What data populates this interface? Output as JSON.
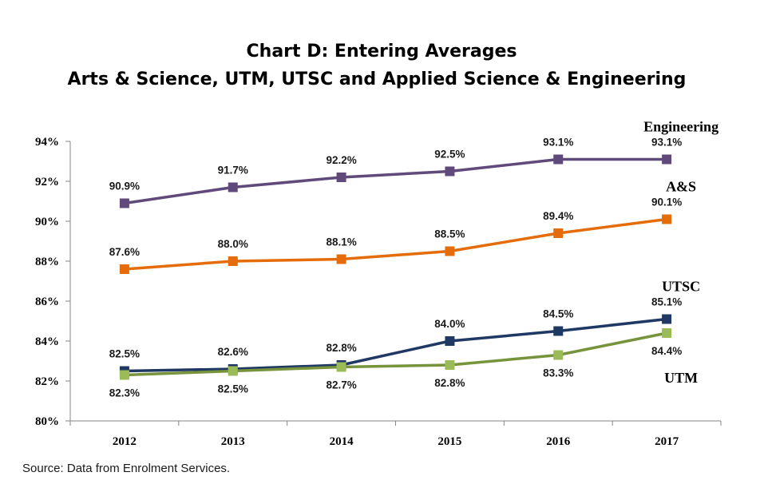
{
  "chart_data": {
    "type": "line",
    "title": "Chart D: Entering Averages",
    "subtitle": "Arts & Science, UTM, UTSC and Applied Science & Engineering",
    "categories": [
      "2012",
      "2013",
      "2014",
      "2015",
      "2016",
      "2017"
    ],
    "ylim": [
      80,
      94
    ],
    "yticks": [
      80,
      82,
      84,
      86,
      88,
      90,
      92,
      94
    ],
    "ytick_labels": [
      "80%",
      "82%",
      "84%",
      "86%",
      "88%",
      "90%",
      "92%",
      "94%"
    ],
    "xlabel": "",
    "ylabel": "",
    "grid": false,
    "legend": "series labels placed at the right end of each line",
    "series": [
      {
        "name": "Engineering",
        "color": "#604a7b",
        "values": [
          90.9,
          91.7,
          92.2,
          92.5,
          93.1,
          93.1
        ],
        "labels": [
          "90.9%",
          "91.7%",
          "92.2%",
          "92.5%",
          "93.1%",
          "93.1%"
        ]
      },
      {
        "name": "A&S",
        "color": "#e46c0a",
        "values": [
          87.6,
          88.0,
          88.1,
          88.5,
          89.4,
          90.1
        ],
        "labels": [
          "87.6%",
          "88.0%",
          "88.1%",
          "88.5%",
          "89.4%",
          "90.1%"
        ]
      },
      {
        "name": "UTSC",
        "color": "#1f3864",
        "values": [
          82.5,
          82.6,
          82.8,
          84.0,
          84.5,
          85.1
        ],
        "labels": [
          "82.5%",
          "82.6%",
          "82.8%",
          "84.0%",
          "84.5%",
          "85.1%"
        ]
      },
      {
        "name": "UTM",
        "color": "#77933c",
        "marker_color": "#9bbb59",
        "values": [
          82.3,
          82.5,
          82.7,
          82.8,
          83.3,
          84.4
        ],
        "labels": [
          "82.3%",
          "82.5%",
          "82.7%",
          "82.8%",
          "83.3%",
          "84.4%"
        ]
      }
    ]
  },
  "footer": {
    "source": "Source: Data from Enrolment Services."
  }
}
